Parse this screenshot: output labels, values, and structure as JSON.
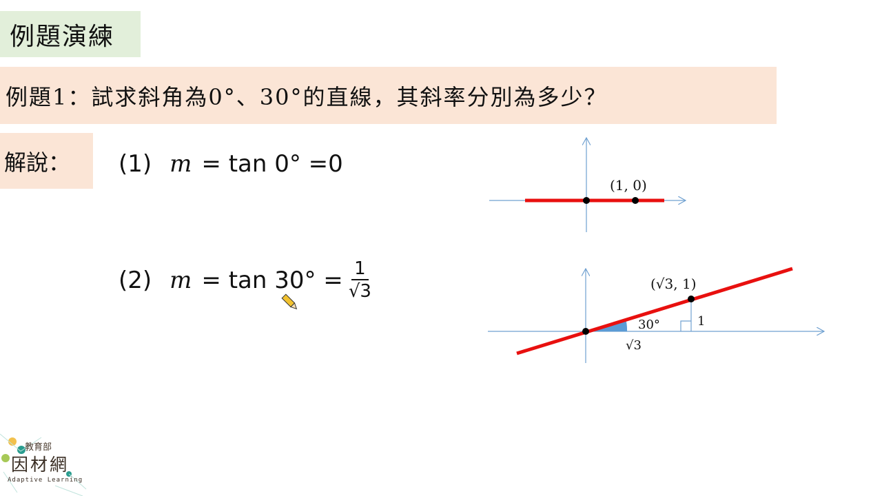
{
  "slide": {
    "title": "例題演練",
    "question": "例題1：試求斜角為0°、30°的直線，其斜率分別為多少？",
    "solution_label": "解說：",
    "eq1": {
      "num": "(1)",
      "m": "m",
      "rhs": "= tan 0° =0"
    },
    "eq2": {
      "num": "(2)",
      "m": "m",
      "rhs": "= tan 30° =",
      "frac_num": "1",
      "frac_den": "√3"
    }
  },
  "graph1": {
    "point_label": "(1, 0)"
  },
  "graph2": {
    "point_label": "(√3, 1)",
    "angle_label": "30°",
    "opposite_label": "1",
    "adjacent_label": "√3"
  },
  "colors": {
    "title_bg": "#e2efda",
    "question_bg": "#fbe5d6",
    "line": "#e8100f",
    "axis": "#6fa0d0",
    "angle_fill": "#5b9bd5"
  },
  "logo": {
    "top": "教育部",
    "main": "因材網",
    "sub": "Adaptive Learning"
  },
  "cursor": "pencil-icon"
}
